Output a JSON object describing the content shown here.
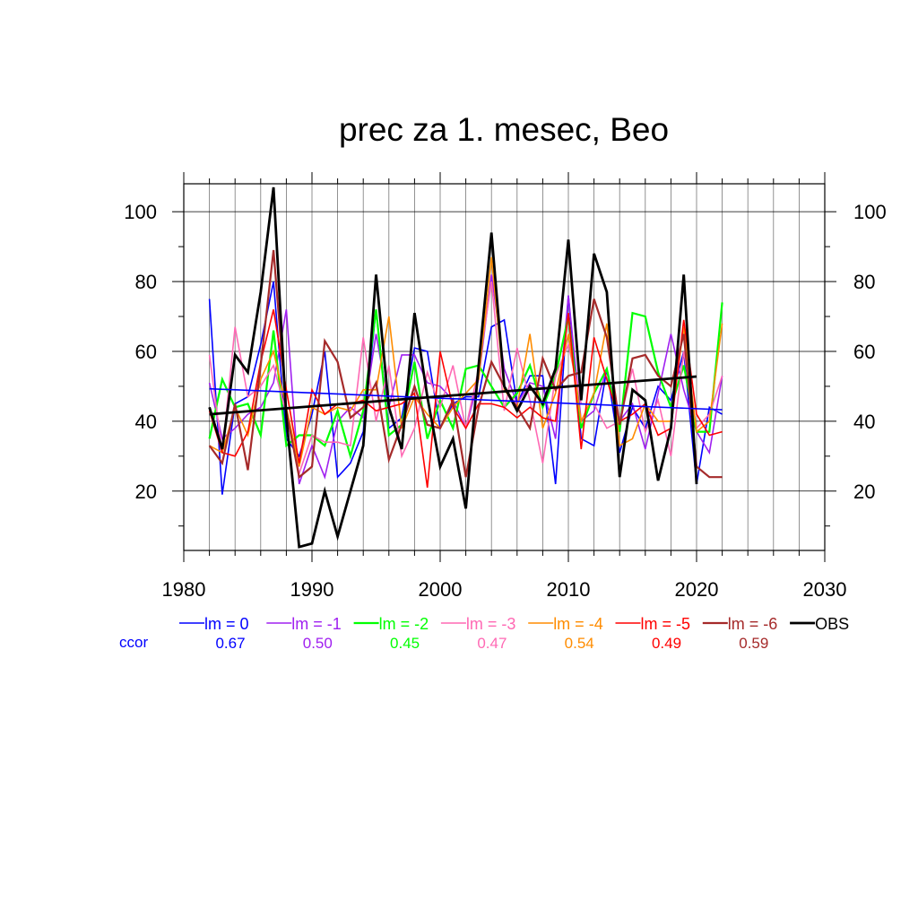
{
  "chart_data": {
    "type": "line",
    "title": "prec za 1. mesec, Beo",
    "xlabel": "",
    "ylabel": "",
    "xlim": [
      1980,
      2030
    ],
    "ylim": [
      3,
      108
    ],
    "x_ticks": [
      "1980",
      "1990",
      "2000",
      "2010",
      "2020",
      "2030"
    ],
    "y_ticks": [
      "20",
      "40",
      "60",
      "80",
      "100"
    ],
    "grid": true,
    "legend_position": "bottom",
    "ccor_label": "ccor",
    "x": [
      1982,
      1983,
      1984,
      1985,
      1986,
      1987,
      1988,
      1989,
      1990,
      1991,
      1992,
      1993,
      1994,
      1995,
      1996,
      1997,
      1998,
      1999,
      2000,
      2001,
      2002,
      2003,
      2004,
      2005,
      2006,
      2007,
      2008,
      2009,
      2010,
      2011,
      2012,
      2013,
      2014,
      2015,
      2016,
      2017,
      2018,
      2019,
      2020,
      2021,
      2022
    ],
    "series": [
      {
        "name": "lm = 0",
        "ccor": "0.67",
        "color": "#0000ff",
        "width": 1.6,
        "values": [
          75,
          19,
          45,
          47,
          62,
          80,
          35,
          30,
          42,
          60,
          24,
          28,
          37,
          72,
          38,
          41,
          61,
          60,
          38,
          45,
          47,
          47,
          67,
          69,
          45,
          53,
          53,
          22,
          76,
          35,
          33,
          55,
          31,
          44,
          38,
          50,
          46,
          60,
          22,
          44,
          42
        ],
        "trend": [
          49.3,
          43.3
        ]
      },
      {
        "name": "lm = -1",
        "ccor": "0.50",
        "color": "#a020f0",
        "width": 1.6,
        "values": [
          51,
          35,
          38,
          42,
          44,
          51,
          72,
          22,
          33,
          24,
          40,
          44,
          41,
          65,
          44,
          59,
          59,
          51,
          50,
          46,
          38,
          52,
          82,
          55,
          45,
          51,
          50,
          35,
          76,
          40,
          43,
          55,
          40,
          45,
          32,
          48,
          65,
          49,
          37,
          31,
          53
        ]
      },
      {
        "name": "lm = -2",
        "ccor": "0.45",
        "color": "#00ff00",
        "width": 2.2,
        "values": [
          35,
          52,
          44,
          45,
          36,
          66,
          33,
          36,
          36,
          33,
          43,
          30,
          43,
          72,
          36,
          39,
          57,
          35,
          46,
          38,
          55,
          56,
          50,
          44,
          48,
          56,
          44,
          53,
          70,
          38,
          48,
          55,
          37,
          71,
          70,
          54,
          44,
          56,
          37,
          37,
          74
        ]
      },
      {
        "name": "lm = -3",
        "ccor": "0.47",
        "color": "#ff69b4",
        "width": 1.6,
        "values": [
          59,
          31,
          67,
          47,
          50,
          56,
          42,
          25,
          36,
          34,
          34,
          33,
          64,
          40,
          56,
          30,
          38,
          54,
          44,
          56,
          38,
          55,
          80,
          43,
          61,
          46,
          28,
          53,
          62,
          45,
          45,
          38,
          40,
          55,
          37,
          46,
          30,
          60,
          38,
          42,
          53
        ]
      },
      {
        "name": "lm = -4",
        "ccor": "0.54",
        "color": "#ff8c00",
        "width": 1.6,
        "values": [
          33,
          31,
          44,
          36,
          52,
          60,
          44,
          27,
          44,
          42,
          44,
          43,
          49,
          49,
          70,
          38,
          47,
          42,
          38,
          44,
          48,
          52,
          87,
          49,
          44,
          65,
          38,
          48,
          65,
          40,
          48,
          68,
          33,
          35,
          45,
          40,
          40,
          67,
          37,
          40,
          68
        ]
      },
      {
        "name": "lm = -5",
        "ccor": "0.49",
        "color": "#ff0000",
        "width": 1.6,
        "values": [
          43,
          31,
          30,
          37,
          57,
          72,
          49,
          28,
          49,
          42,
          45,
          45,
          46,
          43,
          44,
          45,
          48,
          21,
          60,
          44,
          38,
          45,
          45,
          44,
          41,
          44,
          41,
          40,
          71,
          32,
          64,
          52,
          40,
          42,
          45,
          36,
          38,
          69,
          42,
          36,
          37
        ]
      },
      {
        "name": "lm = -6",
        "ccor": "0.59",
        "color": "#a52a2a",
        "width": 2.2,
        "values": [
          33,
          28,
          45,
          26,
          56,
          89,
          43,
          24,
          27,
          63,
          57,
          41,
          44,
          51,
          29,
          39,
          50,
          39,
          38,
          46,
          24,
          44,
          57,
          50,
          44,
          38,
          58,
          49,
          53,
          54,
          75,
          64,
          39,
          58,
          59,
          53,
          50,
          65,
          27,
          24,
          24
        ]
      },
      {
        "name": "OBS",
        "color": "#000000",
        "width": 2.8,
        "values": [
          44,
          32,
          59,
          54,
          77,
          107,
          41,
          4,
          5,
          20,
          7,
          20,
          33,
          82,
          44,
          32,
          71,
          47,
          27,
          35,
          15,
          56,
          94,
          50,
          43,
          50,
          45,
          55,
          92,
          46,
          88,
          77,
          24,
          49,
          46,
          23,
          38,
          82,
          22,
          null,
          null
        ],
        "trend": [
          42.0,
          52.8
        ]
      }
    ]
  }
}
